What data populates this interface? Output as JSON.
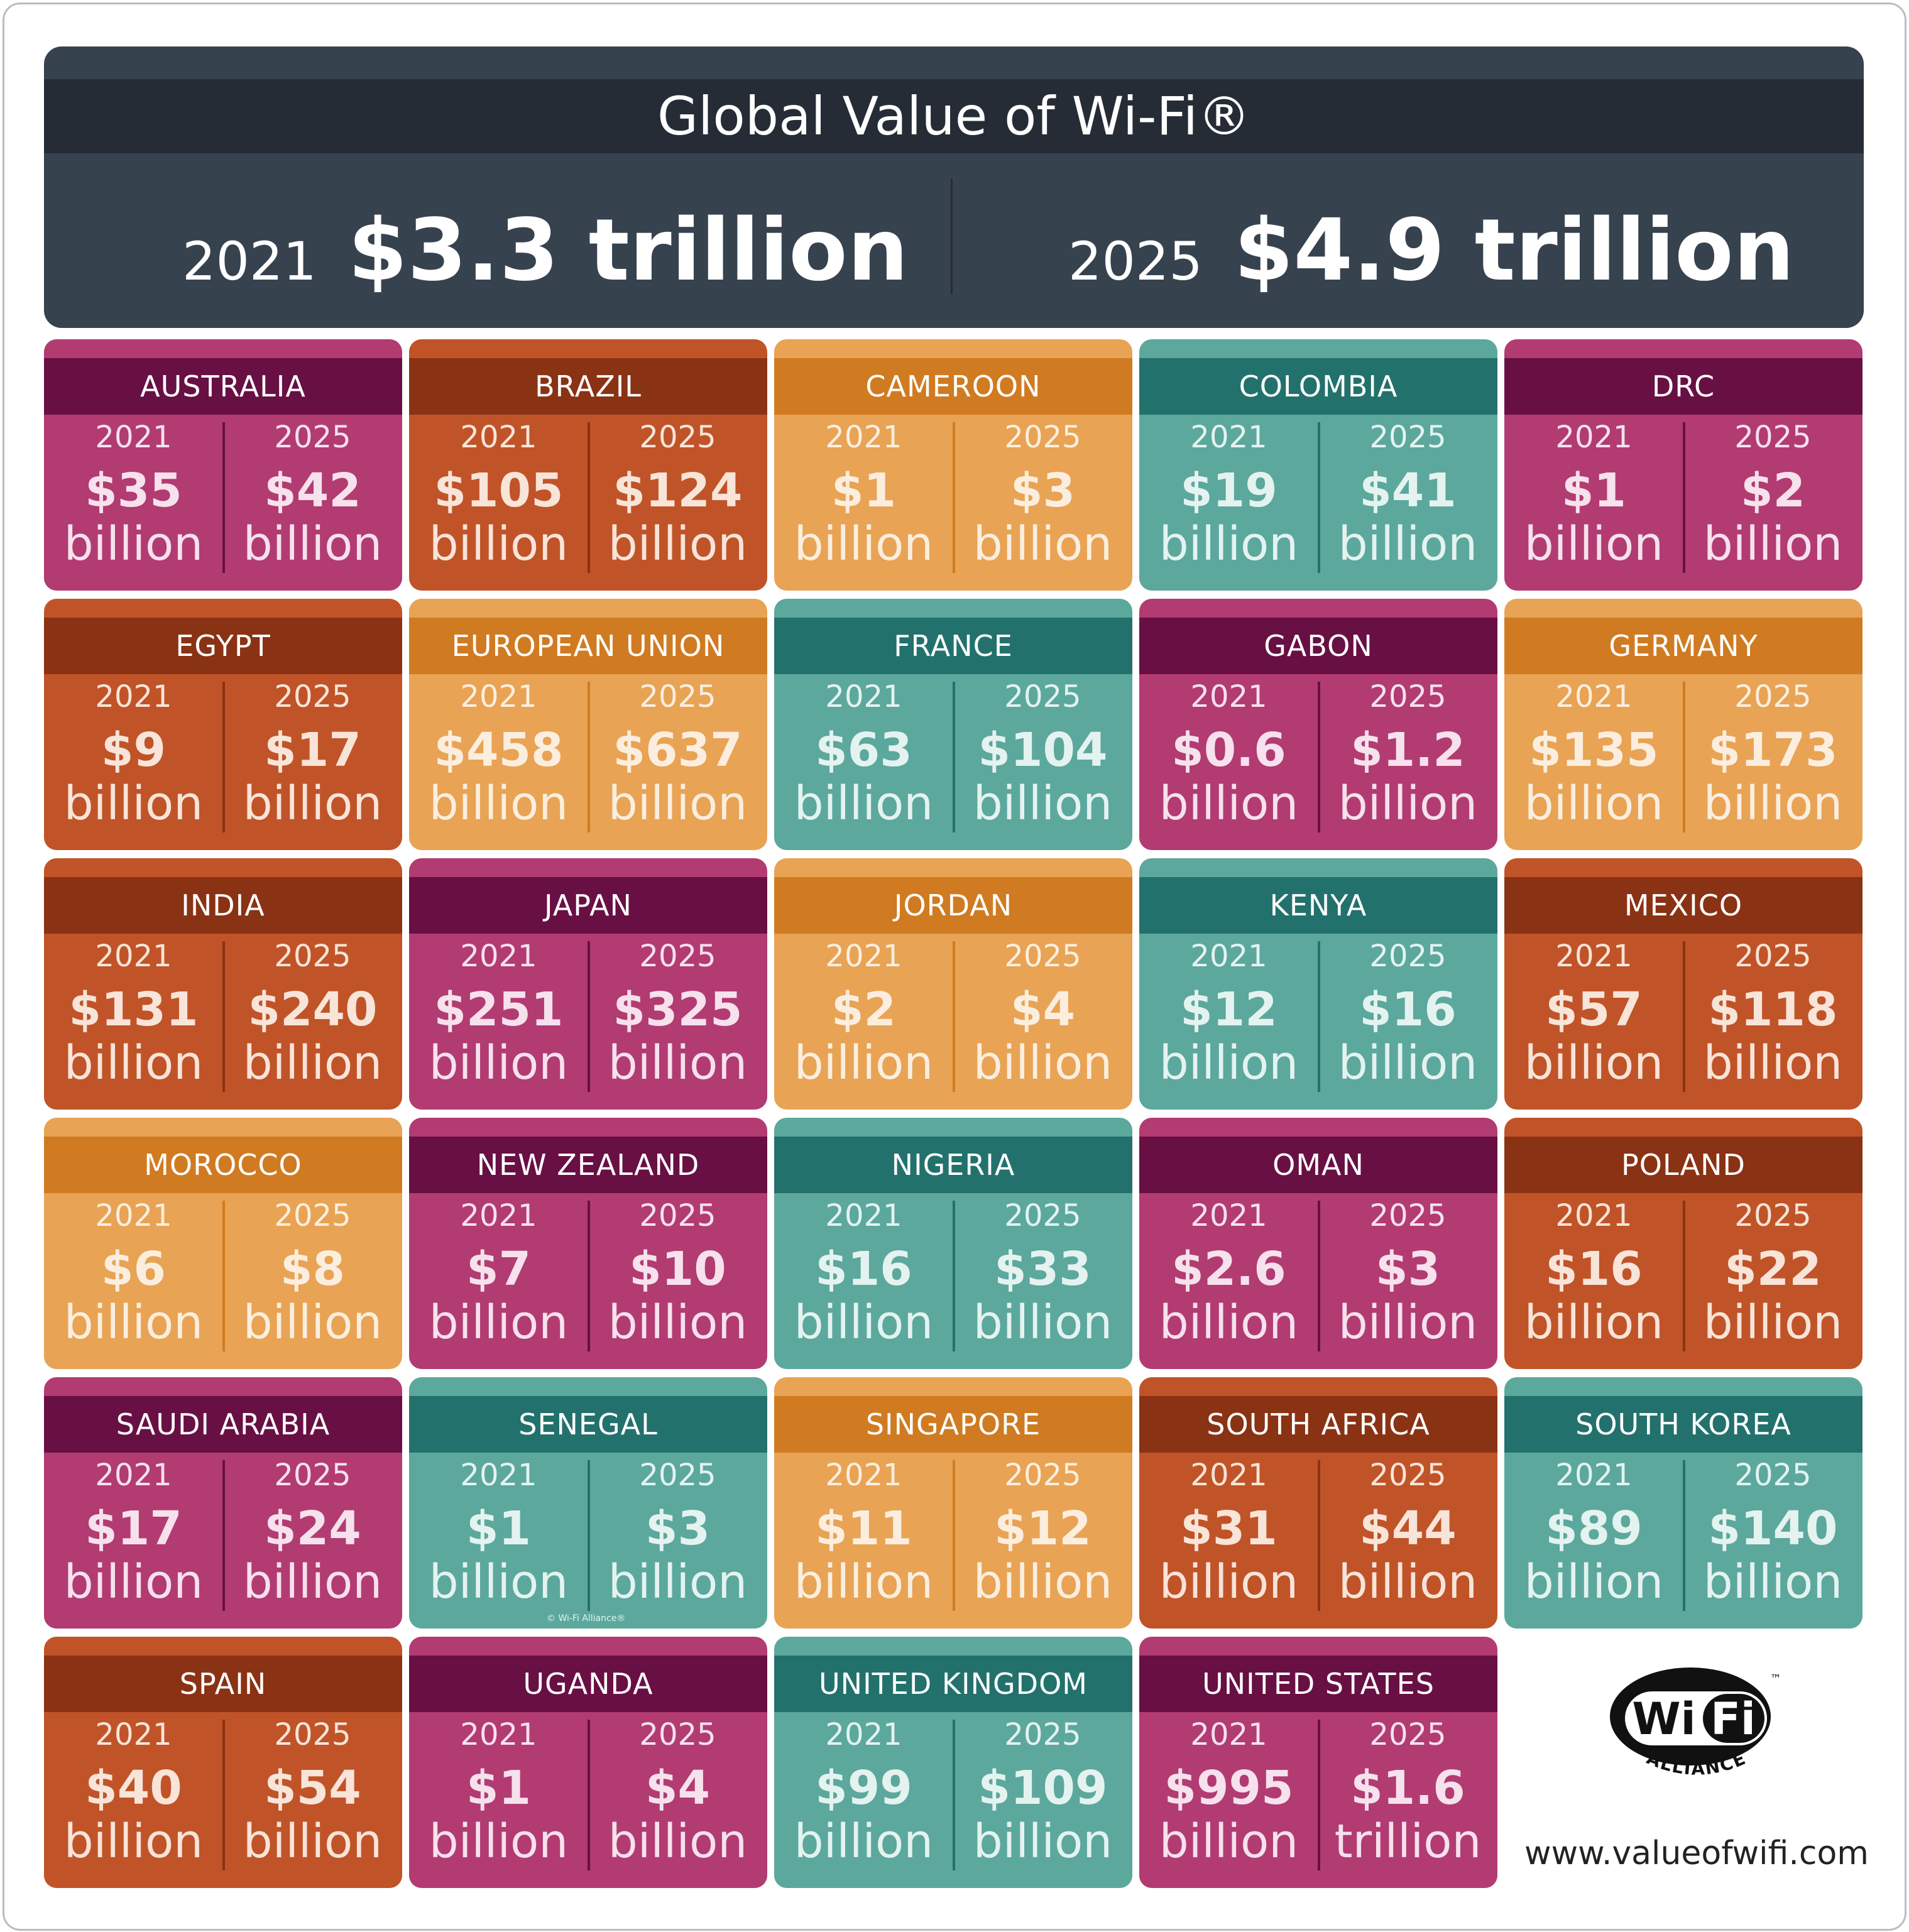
{
  "header": {
    "title": "Global Value of Wi-Fi®",
    "left": {
      "year": "2021",
      "amount": "$3.3 trillion"
    },
    "right": {
      "year": "2025",
      "amount": "$4.9 trillion"
    }
  },
  "year_labels": {
    "a": "2021",
    "b": "2025"
  },
  "countries": [
    {
      "name": "AUSTRALIA",
      "theme": "pink",
      "v2021": "$35",
      "u2021": "billion",
      "v2025": "$42",
      "u2025": "billion"
    },
    {
      "name": "BRAZIL",
      "theme": "rust",
      "v2021": "$105",
      "u2021": "billion",
      "v2025": "$124",
      "u2025": "billion"
    },
    {
      "name": "CAMEROON",
      "theme": "orange",
      "v2021": "$1",
      "u2021": "billion",
      "v2025": "$3",
      "u2025": "billion"
    },
    {
      "name": "COLOMBIA",
      "theme": "teal",
      "v2021": "$19",
      "u2021": "billion",
      "v2025": "$41",
      "u2025": "billion"
    },
    {
      "name": "DRC",
      "theme": "pink",
      "v2021": "$1",
      "u2021": "billion",
      "v2025": "$2",
      "u2025": "billion"
    },
    {
      "name": "EGYPT",
      "theme": "rust",
      "v2021": "$9",
      "u2021": "billion",
      "v2025": "$17",
      "u2025": "billion"
    },
    {
      "name": "EUROPEAN UNION",
      "theme": "orange",
      "v2021": "$458",
      "u2021": "billion",
      "v2025": "$637",
      "u2025": "billion"
    },
    {
      "name": "FRANCE",
      "theme": "teal",
      "v2021": "$63",
      "u2021": "billion",
      "v2025": "$104",
      "u2025": "billion"
    },
    {
      "name": "GABON",
      "theme": "pink",
      "v2021": "$0.6",
      "u2021": "billion",
      "v2025": "$1.2",
      "u2025": "billion"
    },
    {
      "name": "GERMANY",
      "theme": "orange",
      "v2021": "$135",
      "u2021": "billion",
      "v2025": "$173",
      "u2025": "billion"
    },
    {
      "name": "INDIA",
      "theme": "rust",
      "v2021": "$131",
      "u2021": "billion",
      "v2025": "$240",
      "u2025": "billion"
    },
    {
      "name": "JAPAN",
      "theme": "pink",
      "v2021": "$251",
      "u2021": "billion",
      "v2025": "$325",
      "u2025": "billion"
    },
    {
      "name": "JORDAN",
      "theme": "orange",
      "v2021": "$2",
      "u2021": "billion",
      "v2025": "$4",
      "u2025": "billion"
    },
    {
      "name": "KENYA",
      "theme": "teal",
      "v2021": "$12",
      "u2021": "billion",
      "v2025": "$16",
      "u2025": "billion"
    },
    {
      "name": "MEXICO",
      "theme": "rust",
      "v2021": "$57",
      "u2021": "billion",
      "v2025": "$118",
      "u2025": "billion"
    },
    {
      "name": "MOROCCO",
      "theme": "orange",
      "v2021": "$6",
      "u2021": "billion",
      "v2025": "$8",
      "u2025": "billion"
    },
    {
      "name": "NEW ZEALAND",
      "theme": "pink",
      "v2021": "$7",
      "u2021": "billion",
      "v2025": "$10",
      "u2025": "billion"
    },
    {
      "name": "NIGERIA",
      "theme": "teal",
      "v2021": "$16",
      "u2021": "billion",
      "v2025": "$33",
      "u2025": "billion"
    },
    {
      "name": "OMAN",
      "theme": "pink",
      "v2021": "$2.6",
      "u2021": "billion",
      "v2025": "$3",
      "u2025": "billion"
    },
    {
      "name": "POLAND",
      "theme": "rust",
      "v2021": "$16",
      "u2021": "billion",
      "v2025": "$22",
      "u2025": "billion"
    },
    {
      "name": "SAUDI ARABIA",
      "theme": "pink",
      "v2021": "$17",
      "u2021": "billion",
      "v2025": "$24",
      "u2025": "billion"
    },
    {
      "name": "SENEGAL",
      "theme": "teal",
      "v2021": "$1",
      "u2021": "billion",
      "v2025": "$3",
      "u2025": "billion"
    },
    {
      "name": "SINGAPORE",
      "theme": "orange",
      "v2021": "$11",
      "u2021": "billion",
      "v2025": "$12",
      "u2025": "billion"
    },
    {
      "name": "SOUTH AFRICA",
      "theme": "rust",
      "v2021": "$31",
      "u2021": "billion",
      "v2025": "$44",
      "u2025": "billion"
    },
    {
      "name": "SOUTH KOREA",
      "theme": "teal",
      "v2021": "$89",
      "u2021": "billion",
      "v2025": "$140",
      "u2025": "billion"
    },
    {
      "name": "SPAIN",
      "theme": "rust",
      "v2021": "$40",
      "u2021": "billion",
      "v2025": "$54",
      "u2025": "billion"
    },
    {
      "name": "UGANDA",
      "theme": "pink",
      "v2021": "$1",
      "u2021": "billion",
      "v2025": "$4",
      "u2025": "billion"
    },
    {
      "name": "UNITED KINGDOM",
      "theme": "teal",
      "v2021": "$99",
      "u2021": "billion",
      "v2025": "$109",
      "u2025": "billion"
    },
    {
      "name": "UNITED STATES",
      "theme": "pink",
      "v2021": "$995",
      "u2021": "billion",
      "v2025": "$1.6",
      "u2025": "trillion"
    }
  ],
  "copyright": "© Wi-Fi Alliance®",
  "logo": {
    "wi": "Wi",
    "fi": "Fi",
    "tm": "™",
    "alliance": "ALLIANCE"
  },
  "url": "www.valueofwifi.com"
}
